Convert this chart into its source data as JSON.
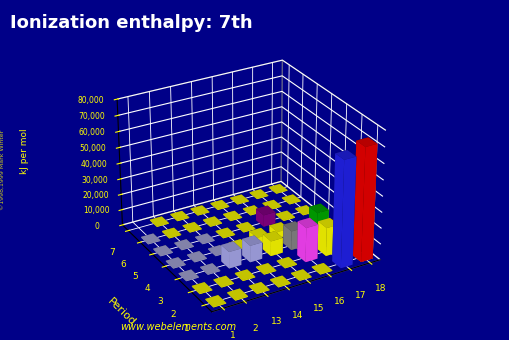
{
  "title": "Ionization enthalpy: 7th",
  "zlabel": "kJ per mol",
  "ylabel": "Period",
  "groups": [
    1,
    2,
    13,
    14,
    15,
    16,
    17,
    18
  ],
  "periods": [
    1,
    2,
    3,
    4,
    5,
    6,
    7
  ],
  "zlim": [
    0,
    80000
  ],
  "zticks": [
    0,
    10000,
    20000,
    30000,
    40000,
    50000,
    60000,
    70000,
    80000
  ],
  "background_color": "#000088",
  "floor_color": "#555555",
  "title_color": "#ffffff",
  "tick_color": "#ffff00",
  "grid_color": "#ffffff",
  "watermark": "www.webelements.com",
  "copyright": "©1998,1999 Mark Winter",
  "elev": 28,
  "azim": -120,
  "bars": [
    {
      "group_idx": 6,
      "period_idx": 0,
      "value": 67068,
      "color": "#2222ee"
    },
    {
      "group_idx": 7,
      "period_idx": 0,
      "value": 71330,
      "color": "#ee0000"
    },
    {
      "group_idx": 5,
      "period_idx": 1,
      "value": 21703,
      "color": "#ff44ff"
    },
    {
      "group_idx": 6,
      "period_idx": 1,
      "value": 17868,
      "color": "#ffff00"
    },
    {
      "group_idx": 7,
      "period_idx": 1,
      "value": 14800,
      "color": "#ffffcc"
    },
    {
      "group_idx": 2,
      "period_idx": 2,
      "value": 10500,
      "color": "#aaaaee"
    },
    {
      "group_idx": 3,
      "period_idx": 2,
      "value": 10500,
      "color": "#aaaaee"
    },
    {
      "group_idx": 4,
      "period_idx": 2,
      "value": 9445,
      "color": "#ffff00"
    },
    {
      "group_idx": 5,
      "period_idx": 2,
      "value": 11995,
      "color": "#888888"
    },
    {
      "group_idx": 6,
      "period_idx": 2,
      "value": 6974,
      "color": "#ff8800"
    },
    {
      "group_idx": 7,
      "period_idx": 2,
      "value": 6200,
      "color": "#880000"
    },
    {
      "group_idx": 4,
      "period_idx": 3,
      "value": 4000,
      "color": "#ffff00"
    },
    {
      "group_idx": 5,
      "period_idx": 3,
      "value": 4000,
      "color": "#ffff00"
    },
    {
      "group_idx": 7,
      "period_idx": 3,
      "value": 8800,
      "color": "#00aa00"
    },
    {
      "group_idx": 5,
      "period_idx": 4,
      "value": 7500,
      "color": "#880088"
    }
  ],
  "disks": [
    {
      "group_idx": 0,
      "period_idx": 0,
      "color": "#ffff00"
    },
    {
      "group_idx": 1,
      "period_idx": 0,
      "color": "#ffff00"
    },
    {
      "group_idx": 2,
      "period_idx": 0,
      "color": "#ffff00"
    },
    {
      "group_idx": 3,
      "period_idx": 0,
      "color": "#ffff00"
    },
    {
      "group_idx": 4,
      "period_idx": 0,
      "color": "#ffff00"
    },
    {
      "group_idx": 5,
      "period_idx": 0,
      "color": "#ffff00"
    },
    {
      "group_idx": 7,
      "period_idx": 0,
      "color": "#ffaaaa"
    },
    {
      "group_idx": 0,
      "period_idx": 1,
      "color": "#ffff00"
    },
    {
      "group_idx": 1,
      "period_idx": 1,
      "color": "#ffff00"
    },
    {
      "group_idx": 2,
      "period_idx": 1,
      "color": "#ffff00"
    },
    {
      "group_idx": 3,
      "period_idx": 1,
      "color": "#ffff00"
    },
    {
      "group_idx": 4,
      "period_idx": 1,
      "color": "#ffff00"
    },
    {
      "group_idx": 0,
      "period_idx": 2,
      "color": "#aaaadd"
    },
    {
      "group_idx": 1,
      "period_idx": 2,
      "color": "#aaaadd"
    },
    {
      "group_idx": 0,
      "period_idx": 3,
      "color": "#aaaadd"
    },
    {
      "group_idx": 1,
      "period_idx": 3,
      "color": "#aaaadd"
    },
    {
      "group_idx": 2,
      "period_idx": 3,
      "color": "#aaaadd"
    },
    {
      "group_idx": 3,
      "period_idx": 3,
      "color": "#ffff00"
    },
    {
      "group_idx": 6,
      "period_idx": 3,
      "value": 1,
      "color": "#ffff00"
    },
    {
      "group_idx": 0,
      "period_idx": 4,
      "color": "#aaaadd"
    },
    {
      "group_idx": 1,
      "period_idx": 4,
      "color": "#aaaadd"
    },
    {
      "group_idx": 2,
      "period_idx": 4,
      "color": "#aaaadd"
    },
    {
      "group_idx": 3,
      "period_idx": 4,
      "color": "#ffff00"
    },
    {
      "group_idx": 4,
      "period_idx": 4,
      "color": "#ffff00"
    },
    {
      "group_idx": 6,
      "period_idx": 4,
      "color": "#ffff00"
    },
    {
      "group_idx": 7,
      "period_idx": 4,
      "color": "#ffff00"
    },
    {
      "group_idx": 0,
      "period_idx": 5,
      "color": "#aaaadd"
    },
    {
      "group_idx": 1,
      "period_idx": 5,
      "color": "#ffff00"
    },
    {
      "group_idx": 2,
      "period_idx": 5,
      "color": "#ffff00"
    },
    {
      "group_idx": 3,
      "period_idx": 5,
      "color": "#ffff00"
    },
    {
      "group_idx": 4,
      "period_idx": 5,
      "color": "#ffff00"
    },
    {
      "group_idx": 5,
      "period_idx": 5,
      "color": "#ffff00"
    },
    {
      "group_idx": 6,
      "period_idx": 5,
      "color": "#ffff00"
    },
    {
      "group_idx": 7,
      "period_idx": 5,
      "color": "#ffff00"
    },
    {
      "group_idx": 1,
      "period_idx": 6,
      "color": "#ffff00"
    },
    {
      "group_idx": 2,
      "period_idx": 6,
      "color": "#ffff00"
    },
    {
      "group_idx": 3,
      "period_idx": 6,
      "color": "#ffff00"
    },
    {
      "group_idx": 4,
      "period_idx": 6,
      "color": "#ffff00"
    },
    {
      "group_idx": 5,
      "period_idx": 6,
      "color": "#ffff00"
    },
    {
      "group_idx": 6,
      "period_idx": 6,
      "color": "#ffff00"
    },
    {
      "group_idx": 7,
      "period_idx": 6,
      "color": "#ffff00"
    }
  ]
}
